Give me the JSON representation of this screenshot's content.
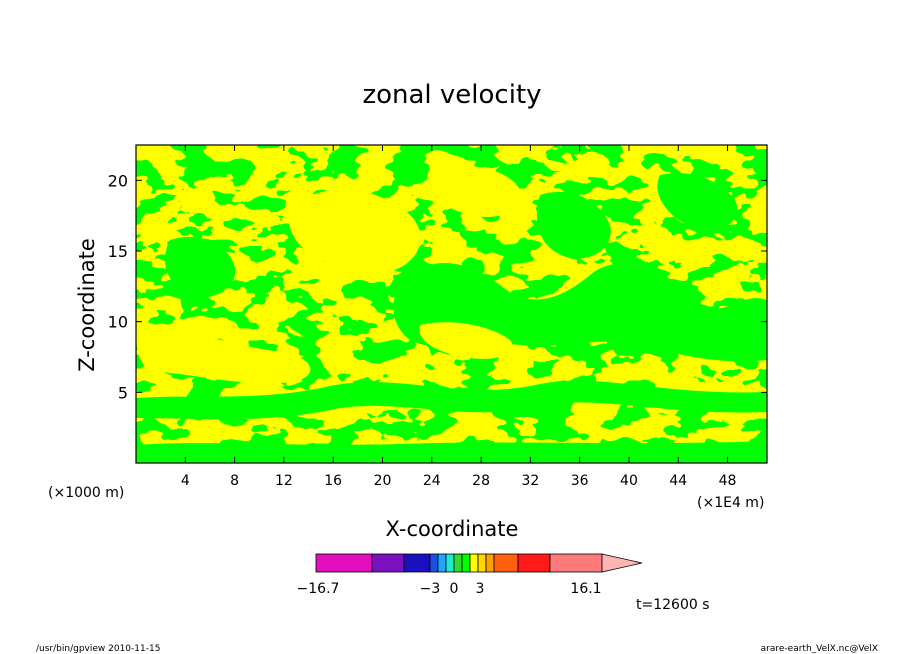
{
  "chart_data": {
    "type": "heatmap",
    "title": "zonal velocity",
    "xlabel": "X-coordinate",
    "ylabel": "Z-coordinate",
    "x_unit_left": "(×1000 m)",
    "x_unit_right": "(×1E4 m)",
    "xlim": [
      0,
      51.2
    ],
    "ylim": [
      0,
      22.5
    ],
    "x_ticks": [
      4,
      8,
      12,
      16,
      20,
      24,
      28,
      32,
      36,
      40,
      44,
      48
    ],
    "y_ticks": [
      5,
      10,
      15,
      20
    ],
    "visible_field_levels": [
      "-3 to 0",
      "0 to 3"
    ],
    "colorbar": {
      "min_label": "−16.7",
      "max_label": "16.1",
      "tick_labels": [
        "−3",
        "0",
        "3"
      ],
      "colors": [
        "#e30fbf",
        "#7a10c0",
        "#1a10c0",
        "#1d4fe0",
        "#1fa6ff",
        "#23e8d0",
        "#2ddc2d",
        "#00ff00",
        "#ffff00",
        "#ffd800",
        "#ffa000",
        "#ff6010",
        "#ff1a1a",
        "#ff7b7b",
        "#ffb4b4"
      ]
    },
    "time_label": "t=12600 s"
  },
  "footer": {
    "left": "/usr/bin/gpview   2010-11-15",
    "right": "arare-earth_VelX.nc@VelX"
  }
}
